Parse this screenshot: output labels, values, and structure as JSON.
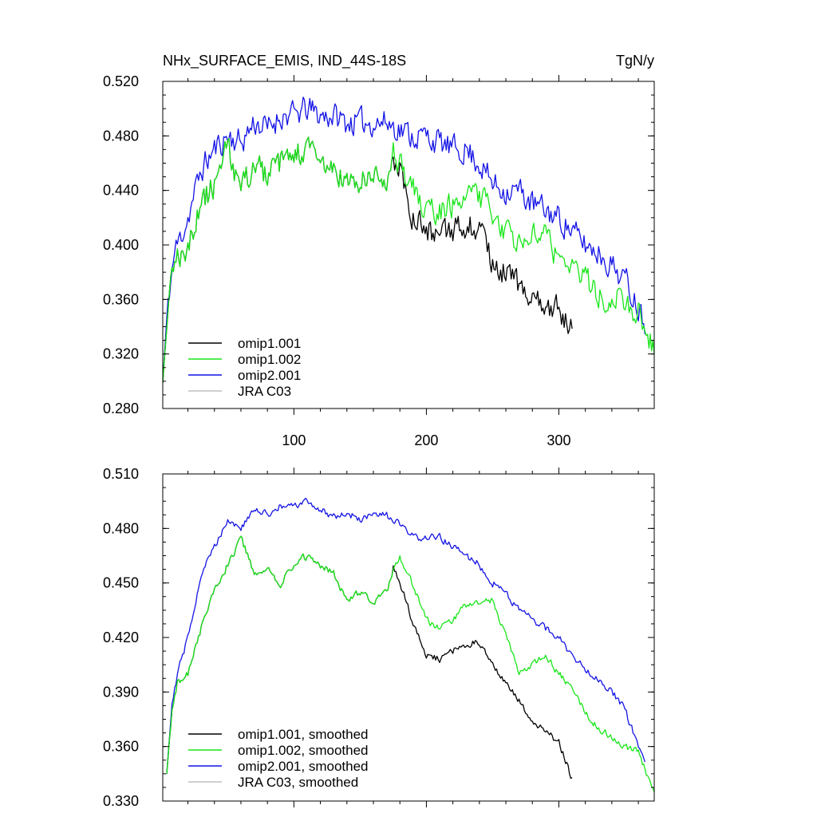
{
  "chart_data": [
    {
      "type": "line",
      "title": "NHx_SURFACE_EMIS, IND_44S-18S",
      "units": "TgN/y",
      "xlim": [
        1,
        372
      ],
      "ylim": [
        0.28,
        0.52
      ],
      "x_ticks": [
        100,
        200,
        300
      ],
      "x_tick_labels": [
        "100",
        "200",
        "300"
      ],
      "y_ticks": [
        0.28,
        0.32,
        0.36,
        0.4,
        0.44,
        0.48,
        0.52
      ],
      "y_tick_labels": [
        "0.280",
        "0.320",
        "0.360",
        "0.400",
        "0.440",
        "0.480",
        "0.520"
      ],
      "legend_position": "bottom-left",
      "grid": false,
      "noise": 0.009,
      "series": [
        {
          "name": "omip1.001",
          "color": "#000000",
          "start": 1,
          "end": 310,
          "keypoints": [
            [
              1,
              0.3
            ],
            [
              5,
              0.35
            ],
            [
              10,
              0.39
            ],
            [
              20,
              0.4
            ],
            [
              30,
              0.43
            ],
            [
              40,
              0.445
            ],
            [
              50,
              0.47
            ],
            [
              60,
              0.44
            ],
            [
              70,
              0.46
            ],
            [
              80,
              0.45
            ],
            [
              90,
              0.46
            ],
            [
              100,
              0.465
            ],
            [
              110,
              0.47
            ],
            [
              120,
              0.46
            ],
            [
              130,
              0.455
            ],
            [
              140,
              0.445
            ],
            [
              150,
              0.445
            ],
            [
              160,
              0.45
            ],
            [
              170,
              0.45
            ],
            [
              175,
              0.465
            ],
            [
              180,
              0.455
            ],
            [
              190,
              0.42
            ],
            [
              200,
              0.41
            ],
            [
              210,
              0.405
            ],
            [
              220,
              0.41
            ],
            [
              230,
              0.415
            ],
            [
              240,
              0.41
            ],
            [
              250,
              0.385
            ],
            [
              260,
              0.38
            ],
            [
              270,
              0.37
            ],
            [
              280,
              0.36
            ],
            [
              290,
              0.355
            ],
            [
              300,
              0.355
            ],
            [
              310,
              0.335
            ]
          ]
        },
        {
          "name": "omip1.002",
          "color": "#19e619",
          "start": 1,
          "end": 372,
          "keypoints": [
            [
              1,
              0.3
            ],
            [
              5,
              0.35
            ],
            [
              10,
              0.39
            ],
            [
              20,
              0.4
            ],
            [
              30,
              0.43
            ],
            [
              40,
              0.445
            ],
            [
              50,
              0.47
            ],
            [
              60,
              0.44
            ],
            [
              70,
              0.46
            ],
            [
              80,
              0.45
            ],
            [
              90,
              0.46
            ],
            [
              100,
              0.465
            ],
            [
              110,
              0.47
            ],
            [
              120,
              0.46
            ],
            [
              130,
              0.455
            ],
            [
              140,
              0.445
            ],
            [
              150,
              0.445
            ],
            [
              160,
              0.45
            ],
            [
              170,
              0.45
            ],
            [
              175,
              0.465
            ],
            [
              180,
              0.46
            ],
            [
              190,
              0.44
            ],
            [
              200,
              0.425
            ],
            [
              210,
              0.425
            ],
            [
              220,
              0.43
            ],
            [
              230,
              0.44
            ],
            [
              240,
              0.435
            ],
            [
              250,
              0.425
            ],
            [
              260,
              0.41
            ],
            [
              270,
              0.4
            ],
            [
              280,
              0.405
            ],
            [
              290,
              0.405
            ],
            [
              300,
              0.39
            ],
            [
              310,
              0.385
            ],
            [
              320,
              0.375
            ],
            [
              330,
              0.365
            ],
            [
              340,
              0.36
            ],
            [
              350,
              0.36
            ],
            [
              360,
              0.35
            ],
            [
              372,
              0.325
            ]
          ]
        },
        {
          "name": "omip2.001",
          "color": "#1414e6",
          "start": 1,
          "end": 365,
          "keypoints": [
            [
              1,
              0.3
            ],
            [
              5,
              0.36
            ],
            [
              10,
              0.395
            ],
            [
              20,
              0.42
            ],
            [
              30,
              0.455
            ],
            [
              40,
              0.47
            ],
            [
              50,
              0.48
            ],
            [
              60,
              0.475
            ],
            [
              70,
              0.49
            ],
            [
              80,
              0.485
            ],
            [
              90,
              0.495
            ],
            [
              100,
              0.495
            ],
            [
              110,
              0.5
            ],
            [
              120,
              0.495
            ],
            [
              130,
              0.495
            ],
            [
              140,
              0.49
            ],
            [
              150,
              0.49
            ],
            [
              160,
              0.49
            ],
            [
              170,
              0.49
            ],
            [
              180,
              0.485
            ],
            [
              190,
              0.48
            ],
            [
              200,
              0.48
            ],
            [
              210,
              0.475
            ],
            [
              220,
              0.47
            ],
            [
              230,
              0.47
            ],
            [
              240,
              0.46
            ],
            [
              250,
              0.445
            ],
            [
              260,
              0.44
            ],
            [
              270,
              0.44
            ],
            [
              280,
              0.43
            ],
            [
              290,
              0.425
            ],
            [
              300,
              0.42
            ],
            [
              310,
              0.41
            ],
            [
              320,
              0.4
            ],
            [
              330,
              0.395
            ],
            [
              340,
              0.385
            ],
            [
              350,
              0.375
            ],
            [
              360,
              0.355
            ],
            [
              365,
              0.345
            ]
          ]
        },
        {
          "name": "JRA C03",
          "color": "#bfbfbf",
          "start": 1,
          "end": 1,
          "keypoints": []
        }
      ]
    },
    {
      "type": "line",
      "title": "",
      "xlim": [
        1,
        372
      ],
      "ylim": [
        0.33,
        0.51
      ],
      "x_ticks": [
        100,
        200,
        300
      ],
      "x_tick_labels": [],
      "y_ticks": [
        0.33,
        0.36,
        0.39,
        0.42,
        0.45,
        0.48,
        0.51
      ],
      "y_tick_labels": [
        "0.330",
        "0.360",
        "0.390",
        "0.420",
        "0.450",
        "0.480",
        "0.510"
      ],
      "legend_position": "bottom-left",
      "grid": false,
      "noise": 0.0018,
      "series": [
        {
          "name": "omip1.001, smoothed",
          "color": "#000000",
          "start": 4,
          "end": 310,
          "keypoints": [
            [
              4,
              0.345
            ],
            [
              8,
              0.38
            ],
            [
              12,
              0.395
            ],
            [
              20,
              0.4
            ],
            [
              30,
              0.425
            ],
            [
              40,
              0.445
            ],
            [
              50,
              0.46
            ],
            [
              60,
              0.475
            ],
            [
              70,
              0.455
            ],
            [
              80,
              0.457
            ],
            [
              90,
              0.45
            ],
            [
              100,
              0.46
            ],
            [
              110,
              0.465
            ],
            [
              120,
              0.46
            ],
            [
              130,
              0.455
            ],
            [
              140,
              0.44
            ],
            [
              150,
              0.445
            ],
            [
              160,
              0.44
            ],
            [
              170,
              0.445
            ],
            [
              175,
              0.458
            ],
            [
              180,
              0.45
            ],
            [
              190,
              0.428
            ],
            [
              200,
              0.41
            ],
            [
              210,
              0.408
            ],
            [
              220,
              0.413
            ],
            [
              230,
              0.415
            ],
            [
              240,
              0.418
            ],
            [
              250,
              0.405
            ],
            [
              260,
              0.395
            ],
            [
              270,
              0.385
            ],
            [
              280,
              0.373
            ],
            [
              290,
              0.368
            ],
            [
              300,
              0.362
            ],
            [
              310,
              0.342
            ]
          ]
        },
        {
          "name": "omip1.002, smoothed",
          "color": "#19e619",
          "start": 4,
          "end": 372,
          "keypoints": [
            [
              4,
              0.345
            ],
            [
              8,
              0.38
            ],
            [
              12,
              0.395
            ],
            [
              20,
              0.4
            ],
            [
              30,
              0.425
            ],
            [
              40,
              0.445
            ],
            [
              50,
              0.46
            ],
            [
              60,
              0.475
            ],
            [
              70,
              0.455
            ],
            [
              80,
              0.457
            ],
            [
              90,
              0.45
            ],
            [
              100,
              0.46
            ],
            [
              110,
              0.465
            ],
            [
              120,
              0.46
            ],
            [
              130,
              0.455
            ],
            [
              140,
              0.44
            ],
            [
              150,
              0.445
            ],
            [
              160,
              0.44
            ],
            [
              170,
              0.445
            ],
            [
              175,
              0.458
            ],
            [
              180,
              0.465
            ],
            [
              190,
              0.448
            ],
            [
              200,
              0.43
            ],
            [
              210,
              0.425
            ],
            [
              220,
              0.43
            ],
            [
              230,
              0.438
            ],
            [
              240,
              0.44
            ],
            [
              250,
              0.44
            ],
            [
              260,
              0.42
            ],
            [
              270,
              0.4
            ],
            [
              280,
              0.405
            ],
            [
              290,
              0.41
            ],
            [
              300,
              0.4
            ],
            [
              310,
              0.392
            ],
            [
              320,
              0.378
            ],
            [
              330,
              0.37
            ],
            [
              340,
              0.365
            ],
            [
              350,
              0.36
            ],
            [
              360,
              0.357
            ],
            [
              372,
              0.335
            ]
          ]
        },
        {
          "name": "omip2.001, smoothed",
          "color": "#1414e6",
          "start": 4,
          "end": 365,
          "keypoints": [
            [
              4,
              0.345
            ],
            [
              8,
              0.385
            ],
            [
              12,
              0.4
            ],
            [
              20,
              0.42
            ],
            [
              30,
              0.455
            ],
            [
              40,
              0.47
            ],
            [
              50,
              0.485
            ],
            [
              60,
              0.48
            ],
            [
              70,
              0.49
            ],
            [
              80,
              0.488
            ],
            [
              90,
              0.492
            ],
            [
              100,
              0.492
            ],
            [
              110,
              0.495
            ],
            [
              120,
              0.49
            ],
            [
              130,
              0.487
            ],
            [
              140,
              0.488
            ],
            [
              150,
              0.485
            ],
            [
              160,
              0.487
            ],
            [
              170,
              0.487
            ],
            [
              180,
              0.482
            ],
            [
              190,
              0.475
            ],
            [
              200,
              0.475
            ],
            [
              210,
              0.475
            ],
            [
              220,
              0.47
            ],
            [
              230,
              0.465
            ],
            [
              240,
              0.46
            ],
            [
              250,
              0.45
            ],
            [
              260,
              0.445
            ],
            [
              270,
              0.435
            ],
            [
              280,
              0.43
            ],
            [
              290,
              0.425
            ],
            [
              300,
              0.42
            ],
            [
              310,
              0.41
            ],
            [
              320,
              0.403
            ],
            [
              330,
              0.397
            ],
            [
              340,
              0.39
            ],
            [
              350,
              0.38
            ],
            [
              360,
              0.36
            ],
            [
              365,
              0.352
            ]
          ]
        },
        {
          "name": "JRA C03, smoothed",
          "color": "#bfbfbf",
          "start": 1,
          "end": 1,
          "keypoints": []
        }
      ]
    }
  ]
}
